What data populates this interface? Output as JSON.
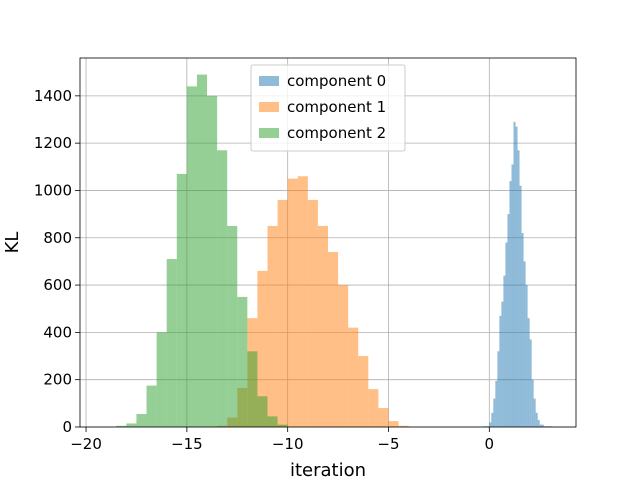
{
  "chart_data": {
    "type": "histogram",
    "title": "",
    "xlabel": "iteration",
    "ylabel": "KL",
    "xlim": [
      -20.3,
      4.3
    ],
    "ylim": [
      0,
      1560
    ],
    "xticks": [
      -20,
      -15,
      -10,
      -5,
      0
    ],
    "yticks": [
      0,
      200,
      400,
      600,
      800,
      1000,
      1200,
      1400
    ],
    "grid": true,
    "legend_position": "top-center",
    "alpha": 0.5,
    "series": [
      {
        "name": "component 0",
        "color": "#1f77b4",
        "bins": [
          [
            -0.3,
            0.0,
            3
          ],
          [
            0.0,
            0.1,
            20
          ],
          [
            0.1,
            0.2,
            60
          ],
          [
            0.2,
            0.3,
            120
          ],
          [
            0.3,
            0.4,
            195
          ],
          [
            0.4,
            0.5,
            320
          ],
          [
            0.5,
            0.6,
            470
          ],
          [
            0.6,
            0.7,
            530
          ],
          [
            0.7,
            0.8,
            640
          ],
          [
            0.8,
            0.9,
            780
          ],
          [
            0.9,
            1.0,
            900
          ],
          [
            1.0,
            1.1,
            1040
          ],
          [
            1.1,
            1.2,
            1110
          ],
          [
            1.2,
            1.3,
            1290
          ],
          [
            1.3,
            1.4,
            1270
          ],
          [
            1.4,
            1.5,
            1170
          ],
          [
            1.5,
            1.6,
            1020
          ],
          [
            1.6,
            1.7,
            820
          ],
          [
            1.7,
            1.8,
            700
          ],
          [
            1.8,
            1.9,
            600
          ],
          [
            1.9,
            2.0,
            460
          ],
          [
            2.0,
            2.1,
            370
          ],
          [
            2.1,
            2.2,
            200
          ],
          [
            2.2,
            2.3,
            120
          ],
          [
            2.3,
            2.4,
            60
          ],
          [
            2.4,
            2.5,
            30
          ],
          [
            2.5,
            2.7,
            10
          ],
          [
            2.7,
            3.1,
            3
          ]
        ]
      },
      {
        "name": "component 1",
        "color": "#ff7f0e",
        "bins": [
          [
            -13.5,
            -13.0,
            5
          ],
          [
            -13.0,
            -12.5,
            40
          ],
          [
            -12.5,
            -12.0,
            165
          ],
          [
            -12.0,
            -11.5,
            460
          ],
          [
            -11.5,
            -11.0,
            660
          ],
          [
            -11.0,
            -10.5,
            850
          ],
          [
            -10.5,
            -10.0,
            960
          ],
          [
            -10.0,
            -9.5,
            1050
          ],
          [
            -9.5,
            -9.0,
            1060
          ],
          [
            -9.0,
            -8.5,
            960
          ],
          [
            -8.5,
            -8.0,
            850
          ],
          [
            -8.0,
            -7.5,
            740
          ],
          [
            -7.5,
            -7.0,
            600
          ],
          [
            -7.0,
            -6.5,
            420
          ],
          [
            -6.5,
            -6.0,
            300
          ],
          [
            -6.0,
            -5.5,
            160
          ],
          [
            -5.5,
            -5.0,
            80
          ],
          [
            -5.0,
            -4.5,
            25
          ],
          [
            -4.5,
            -4.0,
            5
          ]
        ]
      },
      {
        "name": "component 2",
        "color": "#2ca02c",
        "bins": [
          [
            -18.5,
            -18.0,
            5
          ],
          [
            -18.0,
            -17.5,
            15
          ],
          [
            -17.5,
            -17.0,
            55
          ],
          [
            -17.0,
            -16.5,
            175
          ],
          [
            -16.5,
            -16.0,
            400
          ],
          [
            -16.0,
            -15.5,
            710
          ],
          [
            -15.5,
            -15.0,
            1070
          ],
          [
            -15.0,
            -14.5,
            1440
          ],
          [
            -14.5,
            -14.0,
            1490
          ],
          [
            -14.0,
            -13.5,
            1400
          ],
          [
            -13.5,
            -13.0,
            1170
          ],
          [
            -13.0,
            -12.5,
            850
          ],
          [
            -12.5,
            -12.0,
            550
          ],
          [
            -12.0,
            -11.5,
            320
          ],
          [
            -11.5,
            -11.0,
            130
          ],
          [
            -11.0,
            -10.5,
            45
          ],
          [
            -10.5,
            -10.0,
            10
          ]
        ]
      }
    ]
  }
}
